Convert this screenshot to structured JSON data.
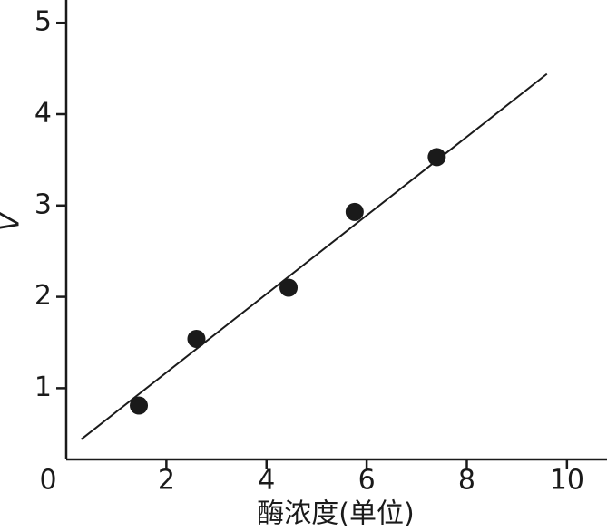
{
  "chart_data": {
    "type": "scatter",
    "x_label": "酶浓度(单位)",
    "y_label": "V",
    "series": [
      {
        "color": "#1a1a1a",
        "x": [
          1.45,
          2.6,
          4.44,
          5.76,
          7.4
        ],
        "values": [
          0.81,
          1.54,
          2.1,
          2.93,
          3.53
        ]
      }
    ],
    "fit_line": {
      "color": "#1a1a1a",
      "x": [
        0.3,
        9.6
      ],
      "values": [
        0.44,
        4.44
      ]
    },
    "xlim": [
      0,
      10.8
    ],
    "ylim": [
      0.22,
      5.25
    ],
    "xticks": [
      0,
      2,
      4,
      6,
      8,
      10
    ],
    "yticks": [
      1,
      2,
      3,
      4,
      5
    ],
    "grid": false
  }
}
